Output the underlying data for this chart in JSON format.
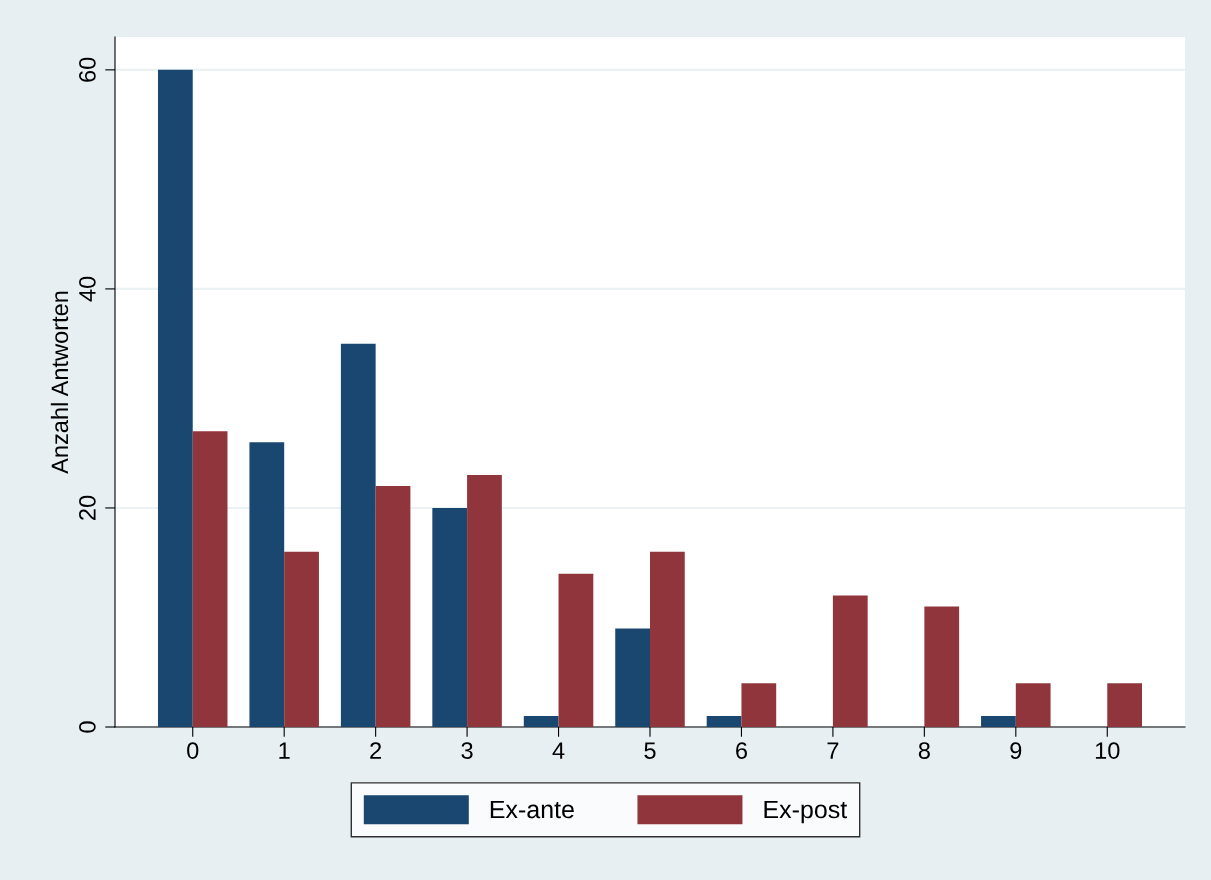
{
  "chart_data": {
    "type": "bar",
    "ylabel": "Anzahl Antworten",
    "categories": [
      "0",
      "1",
      "2",
      "3",
      "4",
      "5",
      "6",
      "7",
      "8",
      "9",
      "10"
    ],
    "series": [
      {
        "name": "Ex-ante",
        "color": "#1a476f",
        "values": [
          60,
          26,
          35,
          20,
          1,
          9,
          1,
          0,
          0,
          1,
          0
        ]
      },
      {
        "name": "Ex-post",
        "color": "#90353b",
        "values": [
          27,
          16,
          22,
          23,
          14,
          16,
          4,
          12,
          11,
          4,
          4
        ]
      }
    ],
    "ylim": [
      0,
      63
    ],
    "yticks": [
      0,
      20,
      40,
      60
    ],
    "grid": "y",
    "legend": "bottom"
  }
}
